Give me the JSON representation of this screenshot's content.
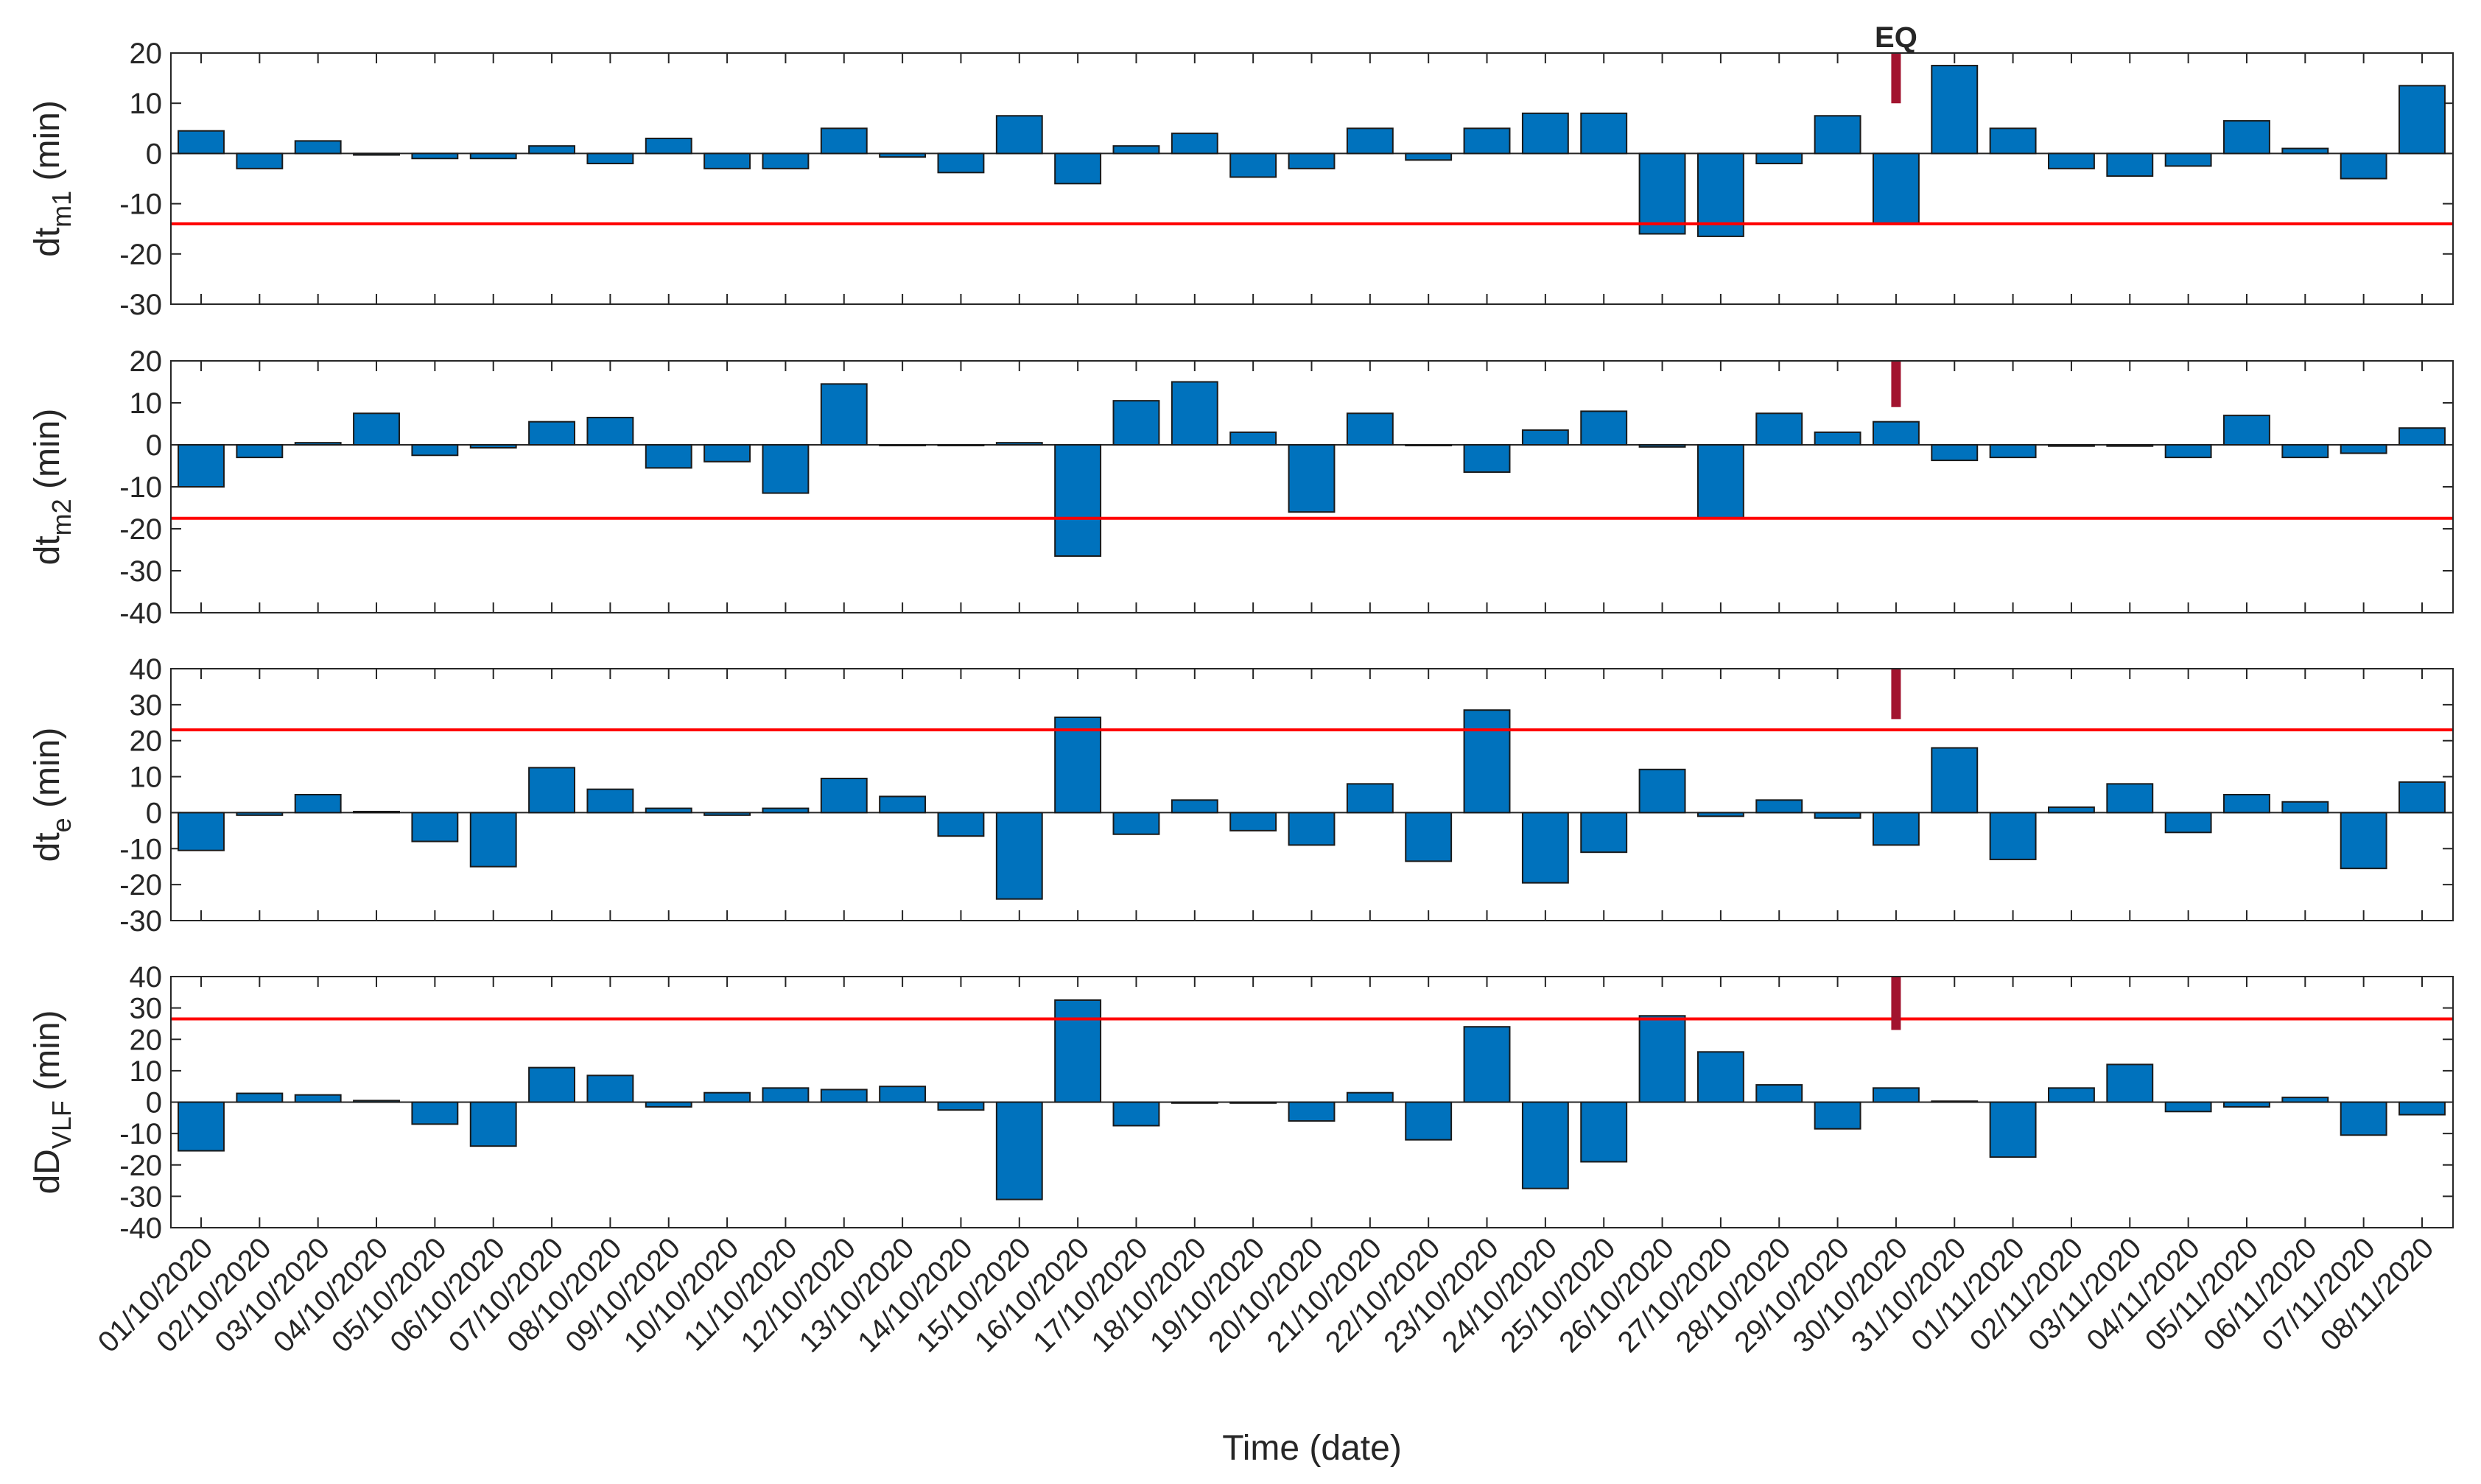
{
  "chart_data": {
    "type": "bar",
    "xlabel": "Time (date)",
    "categories": [
      "01/10/2020",
      "02/10/2020",
      "03/10/2020",
      "04/10/2020",
      "05/10/2020",
      "06/10/2020",
      "07/10/2020",
      "08/10/2020",
      "09/10/2020",
      "10/10/2020",
      "11/10/2020",
      "12/10/2020",
      "13/10/2020",
      "14/10/2020",
      "15/10/2020",
      "16/10/2020",
      "17/10/2020",
      "18/10/2020",
      "19/10/2020",
      "20/10/2020",
      "21/10/2020",
      "22/10/2020",
      "23/10/2020",
      "24/10/2020",
      "25/10/2020",
      "26/10/2020",
      "27/10/2020",
      "28/10/2020",
      "29/10/2020",
      "30/10/2020",
      "31/10/2020",
      "01/11/2020",
      "02/11/2020",
      "03/11/2020",
      "04/11/2020",
      "05/11/2020",
      "06/11/2020",
      "07/11/2020",
      "08/11/2020"
    ],
    "event": {
      "label": "EQ",
      "category": "30/10/2020"
    },
    "bar_color": "#0072BD",
    "threshold_color": "#FF0000",
    "event_color": "#A2142F",
    "panels": [
      {
        "ylabel_main": "dt",
        "ylabel_sub": "m1",
        "ylabel_unit": " (min)",
        "ylim": [
          -30,
          20
        ],
        "yticks": [
          -30,
          -20,
          -10,
          0,
          10,
          20
        ],
        "threshold": -14,
        "event_range": [
          10,
          20
        ],
        "values": [
          4.5,
          -3,
          2.5,
          -0.3,
          -1,
          -1,
          1.5,
          -2,
          3,
          -3,
          -3,
          5,
          -0.7,
          -3.8,
          7.5,
          -6,
          1.5,
          4,
          -4.7,
          -3,
          5,
          -1.3,
          5,
          8,
          8,
          -16,
          -16.5,
          -2,
          7.5,
          -14,
          17.5,
          5,
          -3,
          -4.5,
          -2.5,
          6.5,
          1,
          -5,
          13.5
        ]
      },
      {
        "ylabel_main": "dt",
        "ylabel_sub": "m2",
        "ylabel_unit": " (min)",
        "ylim": [
          -40,
          20
        ],
        "yticks": [
          -40,
          -30,
          -20,
          -10,
          0,
          10,
          20
        ],
        "threshold": -17.5,
        "event_range": [
          9,
          20
        ],
        "values": [
          -10,
          -3,
          0.5,
          7.5,
          -2.5,
          -0.7,
          5.5,
          6.5,
          -5.5,
          -4,
          -11.5,
          14.5,
          0,
          0,
          0.5,
          -26.5,
          10.5,
          15,
          3,
          -16,
          7.5,
          0,
          -6.5,
          3.5,
          8,
          -0.5,
          -17.5,
          7.5,
          3,
          5.5,
          -3.7,
          -3,
          -0.3,
          -0.3,
          -3,
          7,
          -3,
          -2,
          4
        ]
      },
      {
        "ylabel_main": "dt",
        "ylabel_sub": "e",
        "ylabel_unit": " (min)",
        "ylim": [
          -30,
          40
        ],
        "yticks": [
          -30,
          -20,
          -10,
          0,
          10,
          20,
          30,
          40
        ],
        "threshold": 23,
        "event_range": [
          26,
          40
        ],
        "values": [
          -10.5,
          -0.7,
          5,
          0.3,
          -8,
          -15,
          12.5,
          6.5,
          1.2,
          -0.7,
          1.2,
          9.5,
          4.5,
          -6.5,
          -24,
          26.5,
          -6,
          3.5,
          -5,
          -9,
          8,
          -13.5,
          28.5,
          -19.5,
          -11,
          12,
          -1,
          3.5,
          -1.5,
          -9,
          18,
          -13,
          1.5,
          8,
          -5.5,
          5,
          3,
          -15.5,
          8.5
        ]
      },
      {
        "ylabel_main": "dD",
        "ylabel_sub": "VLF",
        "ylabel_unit": " (min)",
        "ylim": [
          -40,
          40
        ],
        "yticks": [
          -40,
          -30,
          -20,
          -10,
          0,
          10,
          20,
          30,
          40
        ],
        "threshold": 26.5,
        "event_range": [
          23,
          40
        ],
        "values": [
          -15.5,
          2.8,
          2.3,
          0.5,
          -7,
          -14,
          11,
          8.5,
          -1.5,
          3,
          4.5,
          4,
          5,
          -2.5,
          -31,
          32.5,
          -7.5,
          -0.3,
          -0.3,
          -6,
          3,
          -12,
          24,
          -27.5,
          -19,
          27.5,
          16,
          5.5,
          -8.5,
          4.5,
          0.3,
          -17.5,
          4.5,
          12,
          -3,
          -1.5,
          1.5,
          -10.5,
          -4
        ]
      }
    ]
  }
}
